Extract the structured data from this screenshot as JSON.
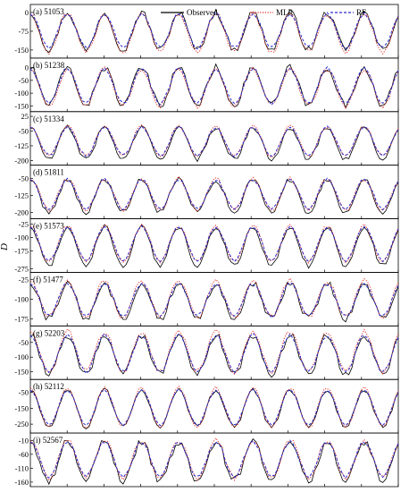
{
  "chart_data": {
    "type": "line",
    "ylabel": "D",
    "legend": {
      "placement": "top-center",
      "entries": [
        {
          "name": "Observed",
          "color": "#000000",
          "dash": "solid"
        },
        {
          "name": "MLR",
          "color": "#e0302a",
          "dash": "dotted"
        },
        {
          "name": "RF",
          "color": "#2a2ad0",
          "dash": "dashed"
        }
      ]
    },
    "grid": false,
    "cycles": 10,
    "samples_per_cycle": 12,
    "panels": [
      {
        "label": "(a) 51053",
        "ticks": [
          0,
          -75,
          -150
        ],
        "ylim": [
          -175,
          25
        ],
        "series": {
          "Observed": {
            "peak": 0,
            "trough": -150,
            "noise": 14
          },
          "MLR": {
            "peak": -5,
            "trough": -160,
            "noise": 10
          },
          "RF": {
            "peak": -5,
            "trough": -140,
            "noise": 6
          }
        }
      },
      {
        "label": "(b) 51238",
        "ticks": [
          0,
          -50,
          -100,
          -150
        ],
        "ylim": [
          -165,
          30
        ],
        "series": {
          "Observed": {
            "peak": 0,
            "trough": -148,
            "noise": 14
          },
          "MLR": {
            "peak": -5,
            "trough": -150,
            "noise": 10
          },
          "RF": {
            "peak": -3,
            "trough": -140,
            "noise": 6
          }
        }
      },
      {
        "label": "(c) 51334",
        "ticks": [
          25,
          -50,
          -125,
          -200
        ],
        "ylim": [
          -215,
          40
        ],
        "series": {
          "Observed": {
            "peak": -30,
            "trough": -195,
            "noise": 12
          },
          "MLR": {
            "peak": -25,
            "trough": -180,
            "noise": 9
          },
          "RF": {
            "peak": -30,
            "trough": -175,
            "noise": 6
          }
        }
      },
      {
        "label": "(d) 51811",
        "ticks": [
          -50,
          -125,
          -200
        ],
        "ylim": [
          -220,
          0
        ],
        "series": {
          "Observed": {
            "peak": -55,
            "trough": -200,
            "noise": 12
          },
          "MLR": {
            "peak": -50,
            "trough": -190,
            "noise": 9
          },
          "RF": {
            "peak": -55,
            "trough": -185,
            "noise": 6
          }
        }
      },
      {
        "label": "(e) 51573",
        "ticks": [
          -25,
          -100,
          -175,
          -275
        ],
        "ylim": [
          -285,
          -5
        ],
        "series": {
          "Observed": {
            "peak": -40,
            "trough": -260,
            "noise": 14
          },
          "MLR": {
            "peak": -35,
            "trough": -235,
            "noise": 10
          },
          "RF": {
            "peak": -40,
            "trough": -230,
            "noise": 6
          }
        }
      },
      {
        "label": "(f) 51477",
        "ticks": [
          -25,
          -100,
          -175
        ],
        "ylim": [
          -195,
          -5
        ],
        "series": {
          "Observed": {
            "peak": -40,
            "trough": -175,
            "noise": 14
          },
          "MLR": {
            "peak": -30,
            "trough": -170,
            "noise": 10
          },
          "RF": {
            "peak": -40,
            "trough": -165,
            "noise": 6
          }
        }
      },
      {
        "label": "(g) 52203",
        "ticks": [
          -50,
          -100,
          -150
        ],
        "ylim": [
          -170,
          0
        ],
        "series": {
          "Observed": {
            "peak": -25,
            "trough": -160,
            "noise": 12
          },
          "MLR": {
            "peak": -12,
            "trough": -150,
            "noise": 9
          },
          "RF": {
            "peak": -25,
            "trough": -150,
            "noise": 6
          }
        }
      },
      {
        "label": "(h) 52112",
        "ticks": [
          -50,
          -150,
          -250
        ],
        "ylim": [
          -295,
          20
        ],
        "series": {
          "Observed": {
            "peak": -35,
            "trough": -270,
            "noise": 14
          },
          "MLR": {
            "peak": -20,
            "trough": -270,
            "noise": 10
          },
          "RF": {
            "peak": -35,
            "trough": -255,
            "noise": 6
          }
        }
      },
      {
        "label": "(i) 52567",
        "ticks": [
          -10,
          -60,
          -110,
          -160
        ],
        "ylim": [
          -170,
          10
        ],
        "series": {
          "Observed": {
            "peak": -15,
            "trough": -155,
            "noise": 14
          },
          "MLR": {
            "peak": -10,
            "trough": -145,
            "noise": 10
          },
          "RF": {
            "peak": -15,
            "trough": -140,
            "noise": 6
          }
        }
      }
    ]
  }
}
